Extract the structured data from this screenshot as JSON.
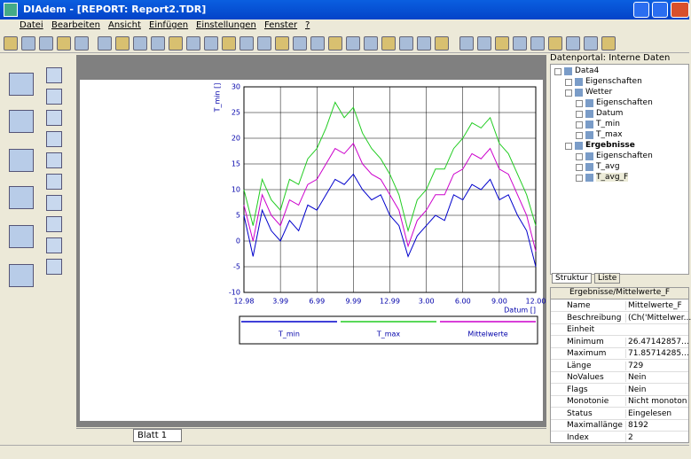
{
  "window": {
    "title": "DIAdem - [REPORT:  Report2.TDR]",
    "menu": [
      "Datei",
      "Bearbeiten",
      "Ansicht",
      "Einfügen",
      "Einstellungen",
      "Fenster",
      "?"
    ]
  },
  "chart_data": {
    "type": "line",
    "y_label": "T_min []",
    "x_label": "Datum []",
    "grid": true,
    "x": [
      0,
      0.25,
      0.5,
      0.75,
      1,
      1.25,
      1.5,
      1.75,
      2,
      2.25,
      2.5,
      2.75,
      3,
      3.25,
      3.5,
      3.75,
      4,
      4.25,
      4.5,
      4.75,
      5,
      5.25,
      5.5,
      5.75,
      6,
      6.25,
      6.5,
      6.75,
      7,
      7.25,
      7.5,
      7.75,
      8
    ],
    "xlim": [
      0,
      8
    ],
    "xticks": [
      {
        "value": 0,
        "label": "12.98"
      },
      {
        "value": 1,
        "label": "3.99"
      },
      {
        "value": 2,
        "label": "6.99"
      },
      {
        "value": 3,
        "label": "9.99"
      },
      {
        "value": 4,
        "label": "12.99"
      },
      {
        "value": 5,
        "label": "3.00"
      },
      {
        "value": 6,
        "label": "6.00"
      },
      {
        "value": 7,
        "label": "9.00"
      },
      {
        "value": 8,
        "label": "12.00"
      }
    ],
    "ylim": [
      -10,
      30
    ],
    "yticks": [
      -10,
      -5,
      0,
      5,
      10,
      15,
      20,
      25,
      30
    ],
    "series": [
      {
        "name": "T_min",
        "color": "#0000cc",
        "values": [
          5,
          -3,
          6,
          2,
          0,
          4,
          2,
          7,
          6,
          9,
          12,
          11,
          13,
          10,
          8,
          9,
          5,
          3,
          -3,
          1,
          3,
          5,
          4,
          9,
          8,
          11,
          10,
          12,
          8,
          9,
          5,
          2,
          -5
        ]
      },
      {
        "name": "T_max",
        "color": "#22cc22",
        "values": [
          10,
          3,
          12,
          8,
          6,
          12,
          11,
          16,
          18,
          22,
          27,
          24,
          26,
          21,
          18,
          16,
          13,
          9,
          2,
          8,
          10,
          14,
          14,
          18,
          20,
          23,
          22,
          24,
          19,
          17,
          13,
          9,
          3
        ]
      },
      {
        "name": "Mittelwerte",
        "color": "#cc00cc",
        "values": [
          7,
          0,
          9,
          5,
          3,
          8,
          7,
          11,
          12,
          15,
          18,
          17,
          19,
          15,
          13,
          12,
          9,
          6,
          -1,
          4,
          6,
          9,
          9,
          13,
          14,
          17,
          16,
          18,
          14,
          13,
          9,
          5,
          -2
        ]
      }
    ]
  },
  "portal": {
    "title": "Datenportal: Interne Daten",
    "tree": [
      {
        "label": "Data4",
        "level": 0
      },
      {
        "label": "Eigenschaften",
        "level": 1
      },
      {
        "label": "Wetter",
        "level": 1
      },
      {
        "label": "Eigenschaften",
        "level": 2
      },
      {
        "label": "Datum",
        "level": 2
      },
      {
        "label": "T_min",
        "level": 2
      },
      {
        "label": "T_max",
        "level": 2
      },
      {
        "label": "Ergebnisse",
        "level": 1,
        "bold": true
      },
      {
        "label": "Eigenschaften",
        "level": 2
      },
      {
        "label": "T_avg",
        "level": 2
      },
      {
        "label": "T_avg_F",
        "level": 2,
        "selected": true
      }
    ],
    "tabs": [
      "Struktur",
      "Liste"
    ]
  },
  "properties": {
    "header": "Ergebnisse/Mittelwerte_F",
    "rows": [
      [
        "Name",
        "Mittelwerte_F"
      ],
      [
        "Beschreibung",
        "(Ch('Mittelwer..."
      ],
      [
        "Einheit"
      ],
      [
        "Minimum",
        "26.47142857..."
      ],
      [
        "Maximum",
        "71.85714285..."
      ],
      [
        "Länge",
        "729"
      ],
      [
        "NoValues",
        "Nein"
      ],
      [
        "Flags",
        "Nein"
      ],
      [
        "Monotonie",
        "Nicht monoton"
      ],
      [
        "Status",
        "Eingelesen"
      ],
      [
        "Maximallänge",
        "8192"
      ],
      [
        "Index",
        "2"
      ]
    ]
  },
  "sheet_tab": "Blatt 1"
}
